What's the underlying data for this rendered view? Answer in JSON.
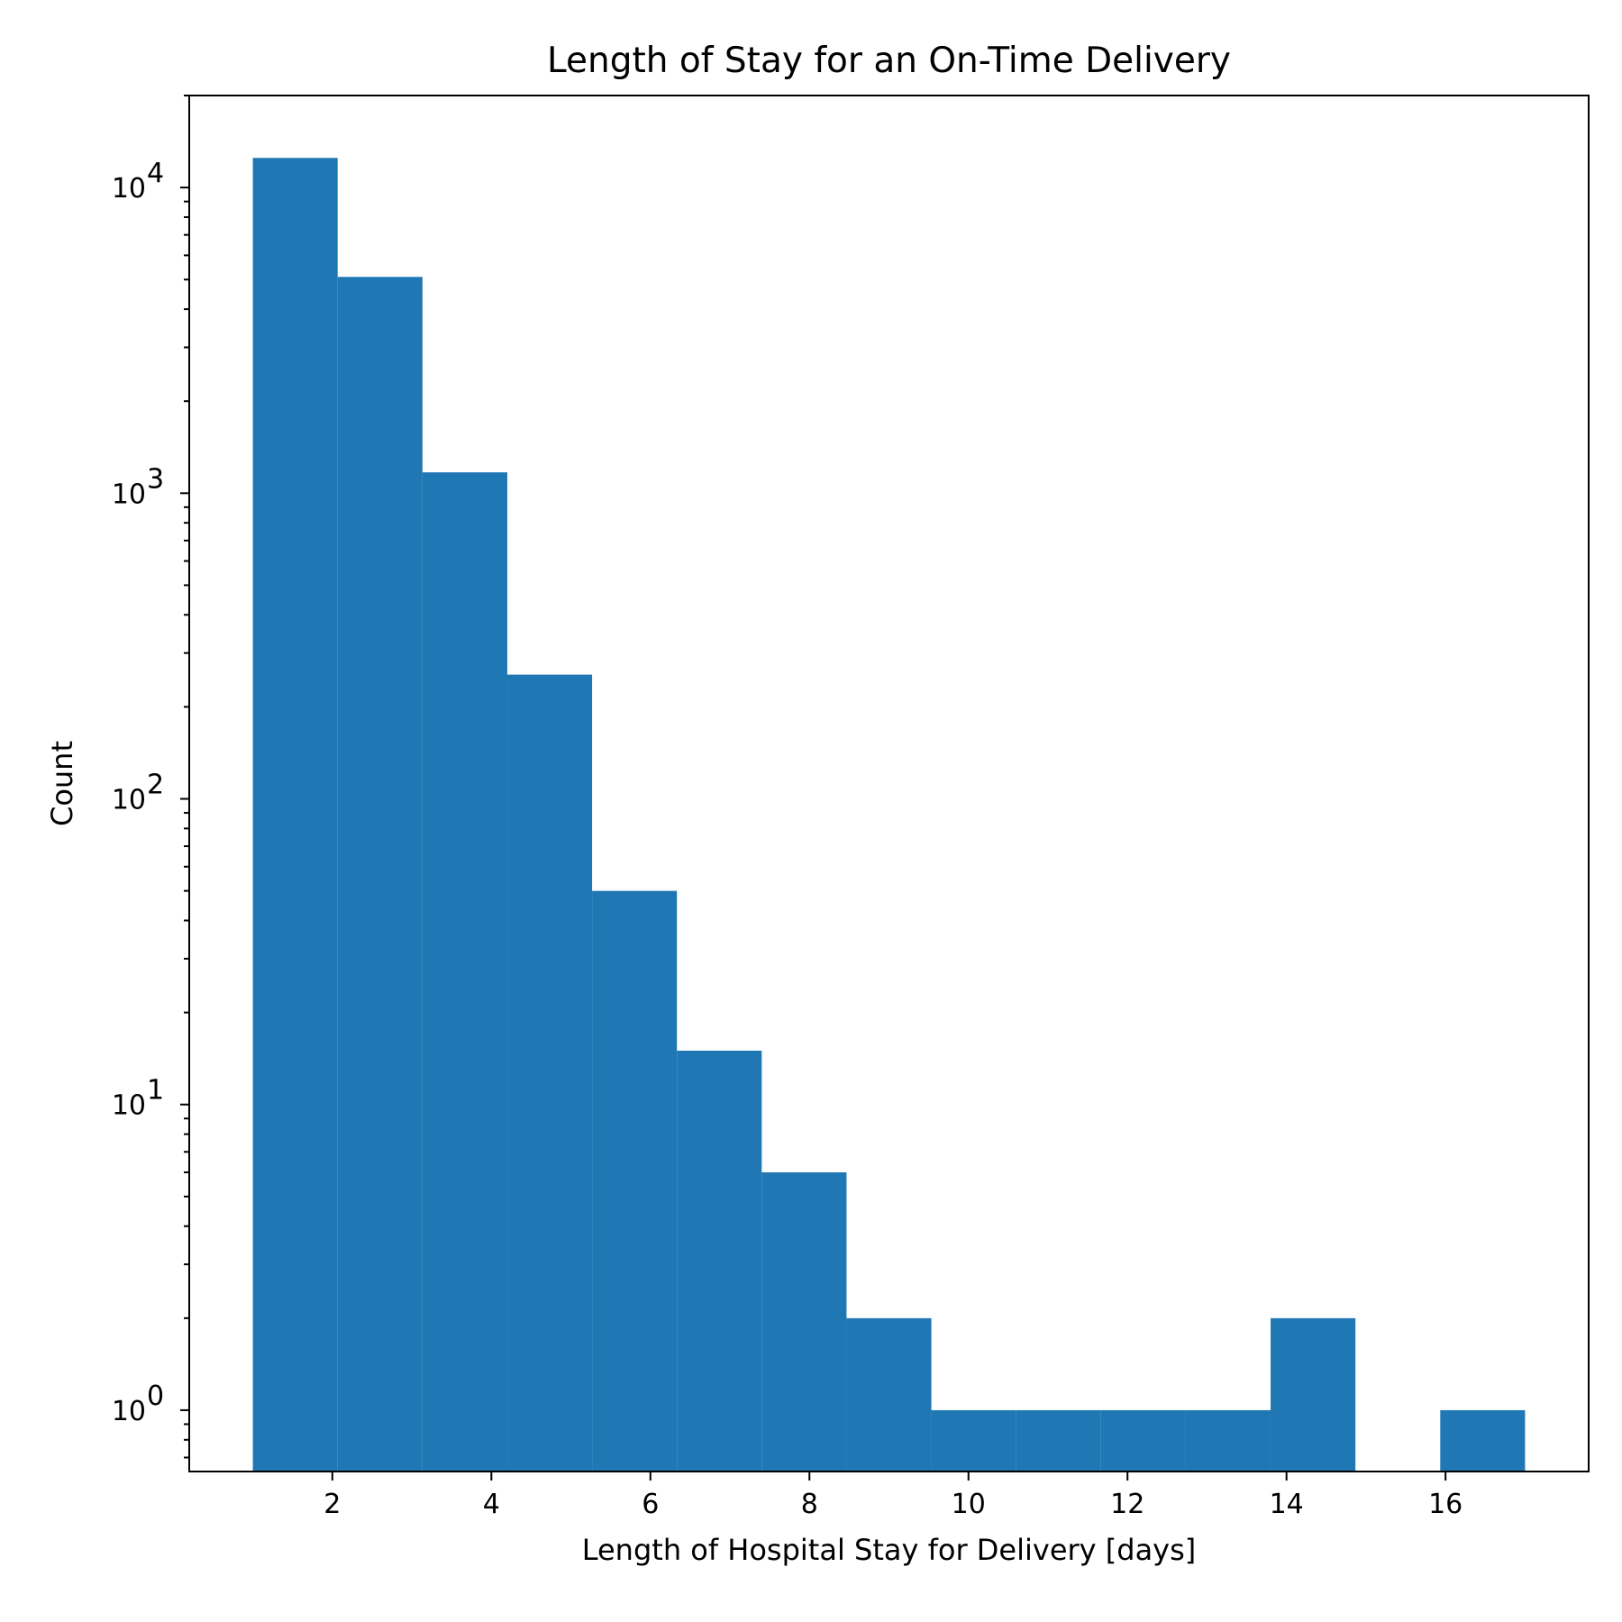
{
  "chart_data": {
    "type": "bar",
    "title": "Length of Stay for an On-Time Delivery",
    "xlabel": "Length of Hospital Stay for Delivery [days]",
    "ylabel": "Count",
    "y_scale": "log",
    "bar_color": "#1f77b4",
    "grid": false,
    "legend": "none",
    "bin_edges": [
      1.0,
      2.0667,
      3.1333,
      4.2,
      5.2667,
      6.3333,
      7.4,
      8.4667,
      9.5333,
      10.6,
      11.6667,
      12.7333,
      13.8,
      14.8667,
      15.9333,
      17.0
    ],
    "values": [
      12500,
      5100,
      1170,
      255,
      50,
      15,
      6,
      2,
      1,
      1,
      1,
      1,
      2,
      0,
      1
    ],
    "xlim": [
      0.2,
      17.8
    ],
    "ylim": [
      0.63,
      20000
    ],
    "x_ticks": [
      2,
      4,
      6,
      8,
      10,
      12,
      14,
      16
    ],
    "x_tick_labels": [
      "2",
      "4",
      "6",
      "8",
      "10",
      "12",
      "14",
      "16"
    ],
    "y_ticks": [
      1,
      10,
      100,
      1000,
      10000
    ],
    "y_tick_base": "10",
    "y_tick_exponents": [
      "0",
      "1",
      "2",
      "3",
      "4"
    ]
  }
}
